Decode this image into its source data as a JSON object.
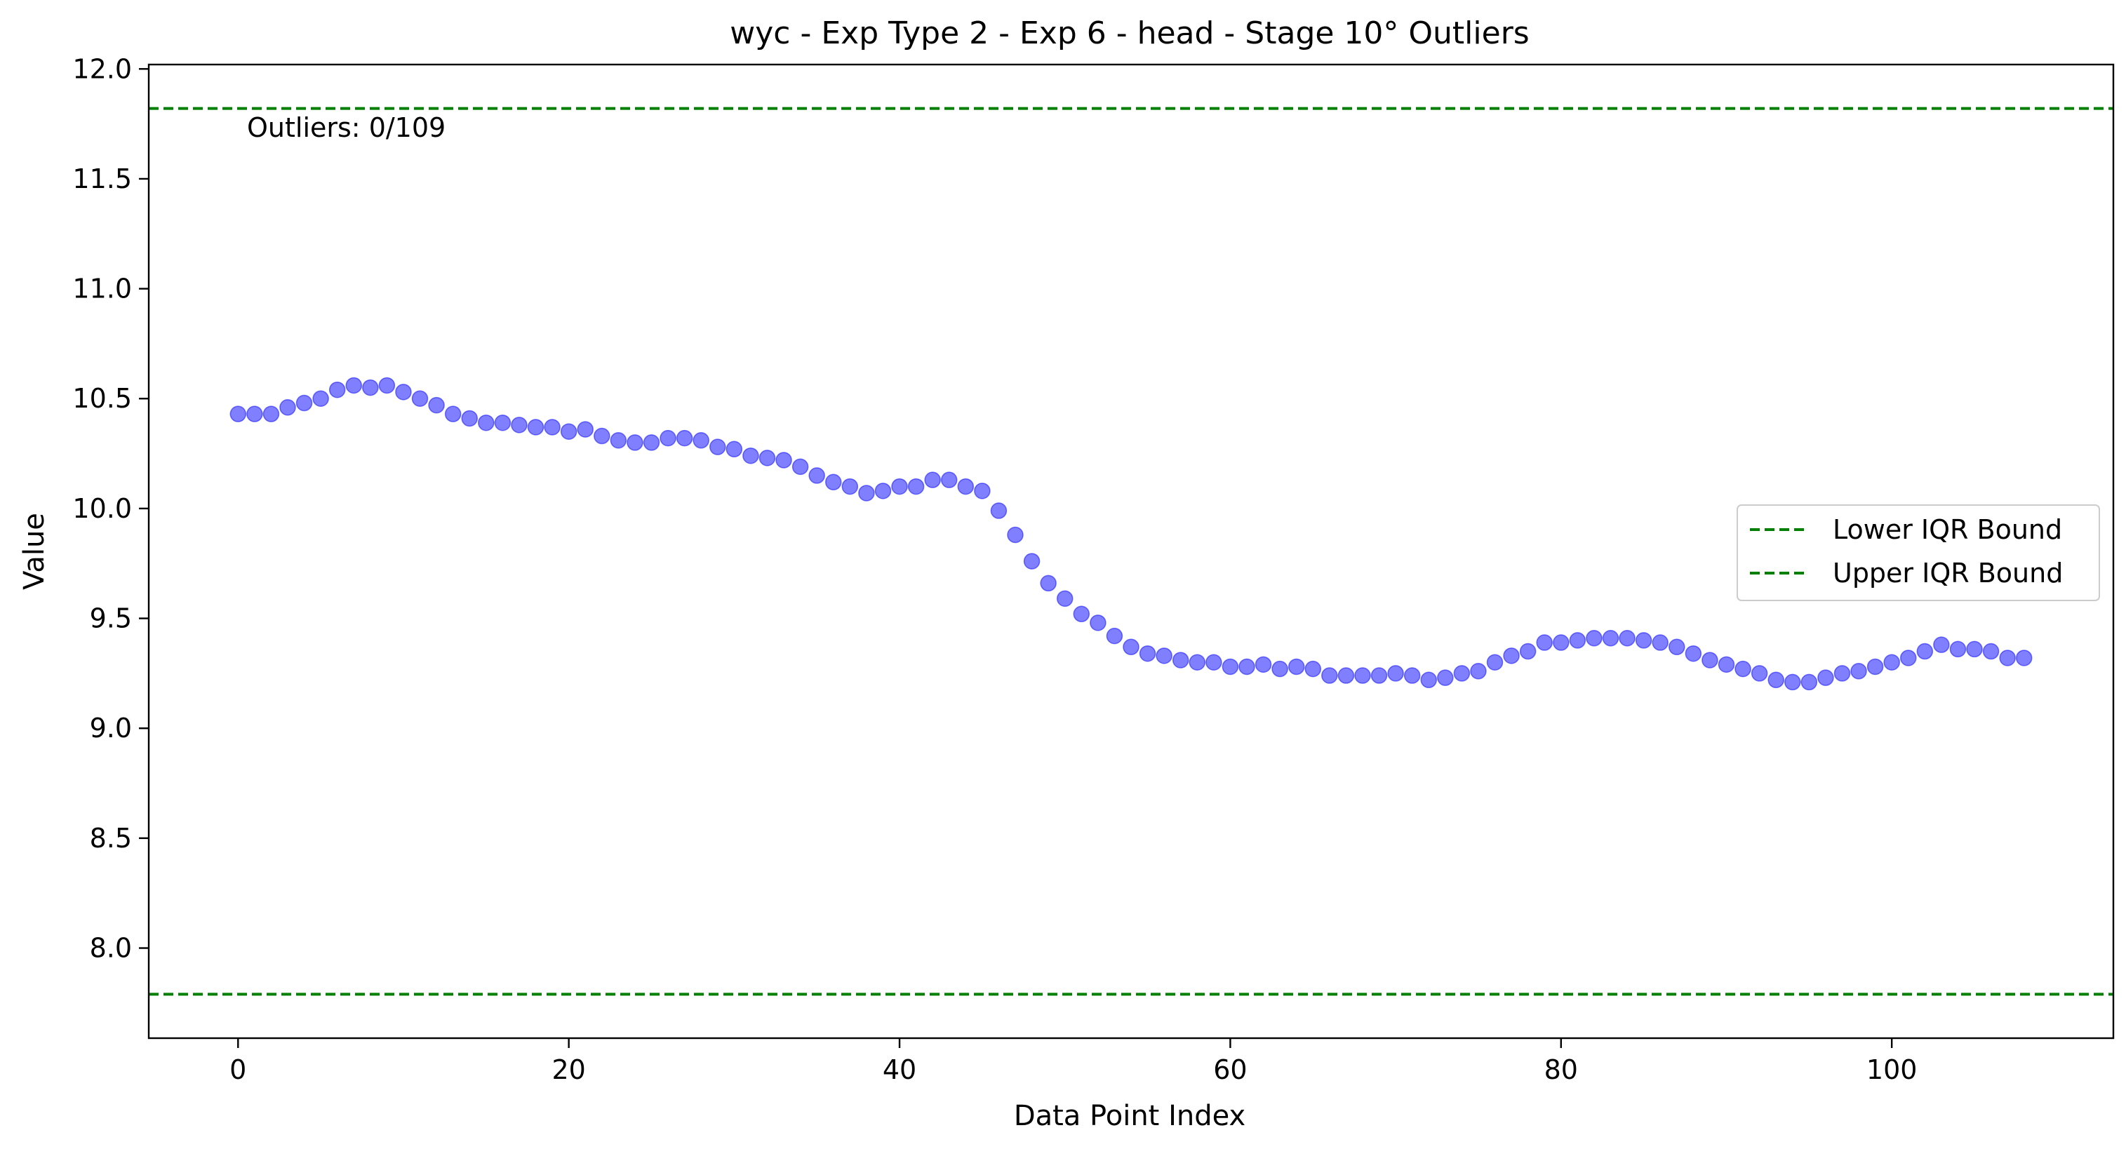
{
  "chart_data": {
    "type": "scatter",
    "title": "wyc - Exp Type 2 - Exp 6 - head - Stage 10° Outliers",
    "xlabel": "Data Point Index",
    "ylabel": "Value",
    "xlim": [
      -5.4,
      113.4
    ],
    "ylim": [
      7.59,
      12.02
    ],
    "xticks": [
      0,
      20,
      40,
      60,
      80,
      100
    ],
    "yticks": [
      8.0,
      8.5,
      9.0,
      9.5,
      10.0,
      10.5,
      11.0,
      11.5,
      12.0
    ],
    "ytick_labels": [
      "8.0",
      "8.5",
      "9.0",
      "9.5",
      "10.0",
      "10.5",
      "11.0",
      "11.5",
      "12.0"
    ],
    "annotation": "Outliers: 0/109",
    "point_color": "#0000ff",
    "bound_color": "#008000",
    "legend_placement": "center-right",
    "bounds": [
      {
        "name": "Lower IQR Bound",
        "value": 7.79
      },
      {
        "name": "Upper IQR Bound",
        "value": 11.82
      }
    ],
    "x": [
      0,
      1,
      2,
      3,
      4,
      5,
      6,
      7,
      8,
      9,
      10,
      11,
      12,
      13,
      14,
      15,
      16,
      17,
      18,
      19,
      20,
      21,
      22,
      23,
      24,
      25,
      26,
      27,
      28,
      29,
      30,
      31,
      32,
      33,
      34,
      35,
      36,
      37,
      38,
      39,
      40,
      41,
      42,
      43,
      44,
      45,
      46,
      47,
      48,
      49,
      50,
      51,
      52,
      53,
      54,
      55,
      56,
      57,
      58,
      59,
      60,
      61,
      62,
      63,
      64,
      65,
      66,
      67,
      68,
      69,
      70,
      71,
      72,
      73,
      74,
      75,
      76,
      77,
      78,
      79,
      80,
      81,
      82,
      83,
      84,
      85,
      86,
      87,
      88,
      89,
      90,
      91,
      92,
      93,
      94,
      95,
      96,
      97,
      98,
      99,
      100,
      101,
      102,
      103,
      104,
      105,
      106,
      107,
      108
    ],
    "values": [
      10.43,
      10.43,
      10.43,
      10.46,
      10.48,
      10.5,
      10.54,
      10.56,
      10.55,
      10.56,
      10.53,
      10.5,
      10.47,
      10.43,
      10.41,
      10.39,
      10.39,
      10.38,
      10.37,
      10.37,
      10.35,
      10.36,
      10.33,
      10.31,
      10.3,
      10.3,
      10.32,
      10.32,
      10.31,
      10.28,
      10.27,
      10.24,
      10.23,
      10.22,
      10.19,
      10.15,
      10.12,
      10.1,
      10.07,
      10.08,
      10.1,
      10.1,
      10.13,
      10.13,
      10.1,
      10.08,
      9.99,
      9.88,
      9.76,
      9.66,
      9.59,
      9.52,
      9.48,
      9.42,
      9.37,
      9.34,
      9.33,
      9.31,
      9.3,
      9.3,
      9.28,
      9.28,
      9.29,
      9.27,
      9.28,
      9.27,
      9.24,
      9.24,
      9.24,
      9.24,
      9.25,
      9.24,
      9.22,
      9.23,
      9.25,
      9.26,
      9.3,
      9.33,
      9.35,
      9.39,
      9.39,
      9.4,
      9.41,
      9.41,
      9.41,
      9.4,
      9.39,
      9.37,
      9.34,
      9.31,
      9.29,
      9.27,
      9.25,
      9.22,
      9.21,
      9.21,
      9.23,
      9.25,
      9.26,
      9.28,
      9.3,
      9.32,
      9.35,
      9.38,
      9.36,
      9.36,
      9.35,
      9.32,
      9.32
    ]
  }
}
